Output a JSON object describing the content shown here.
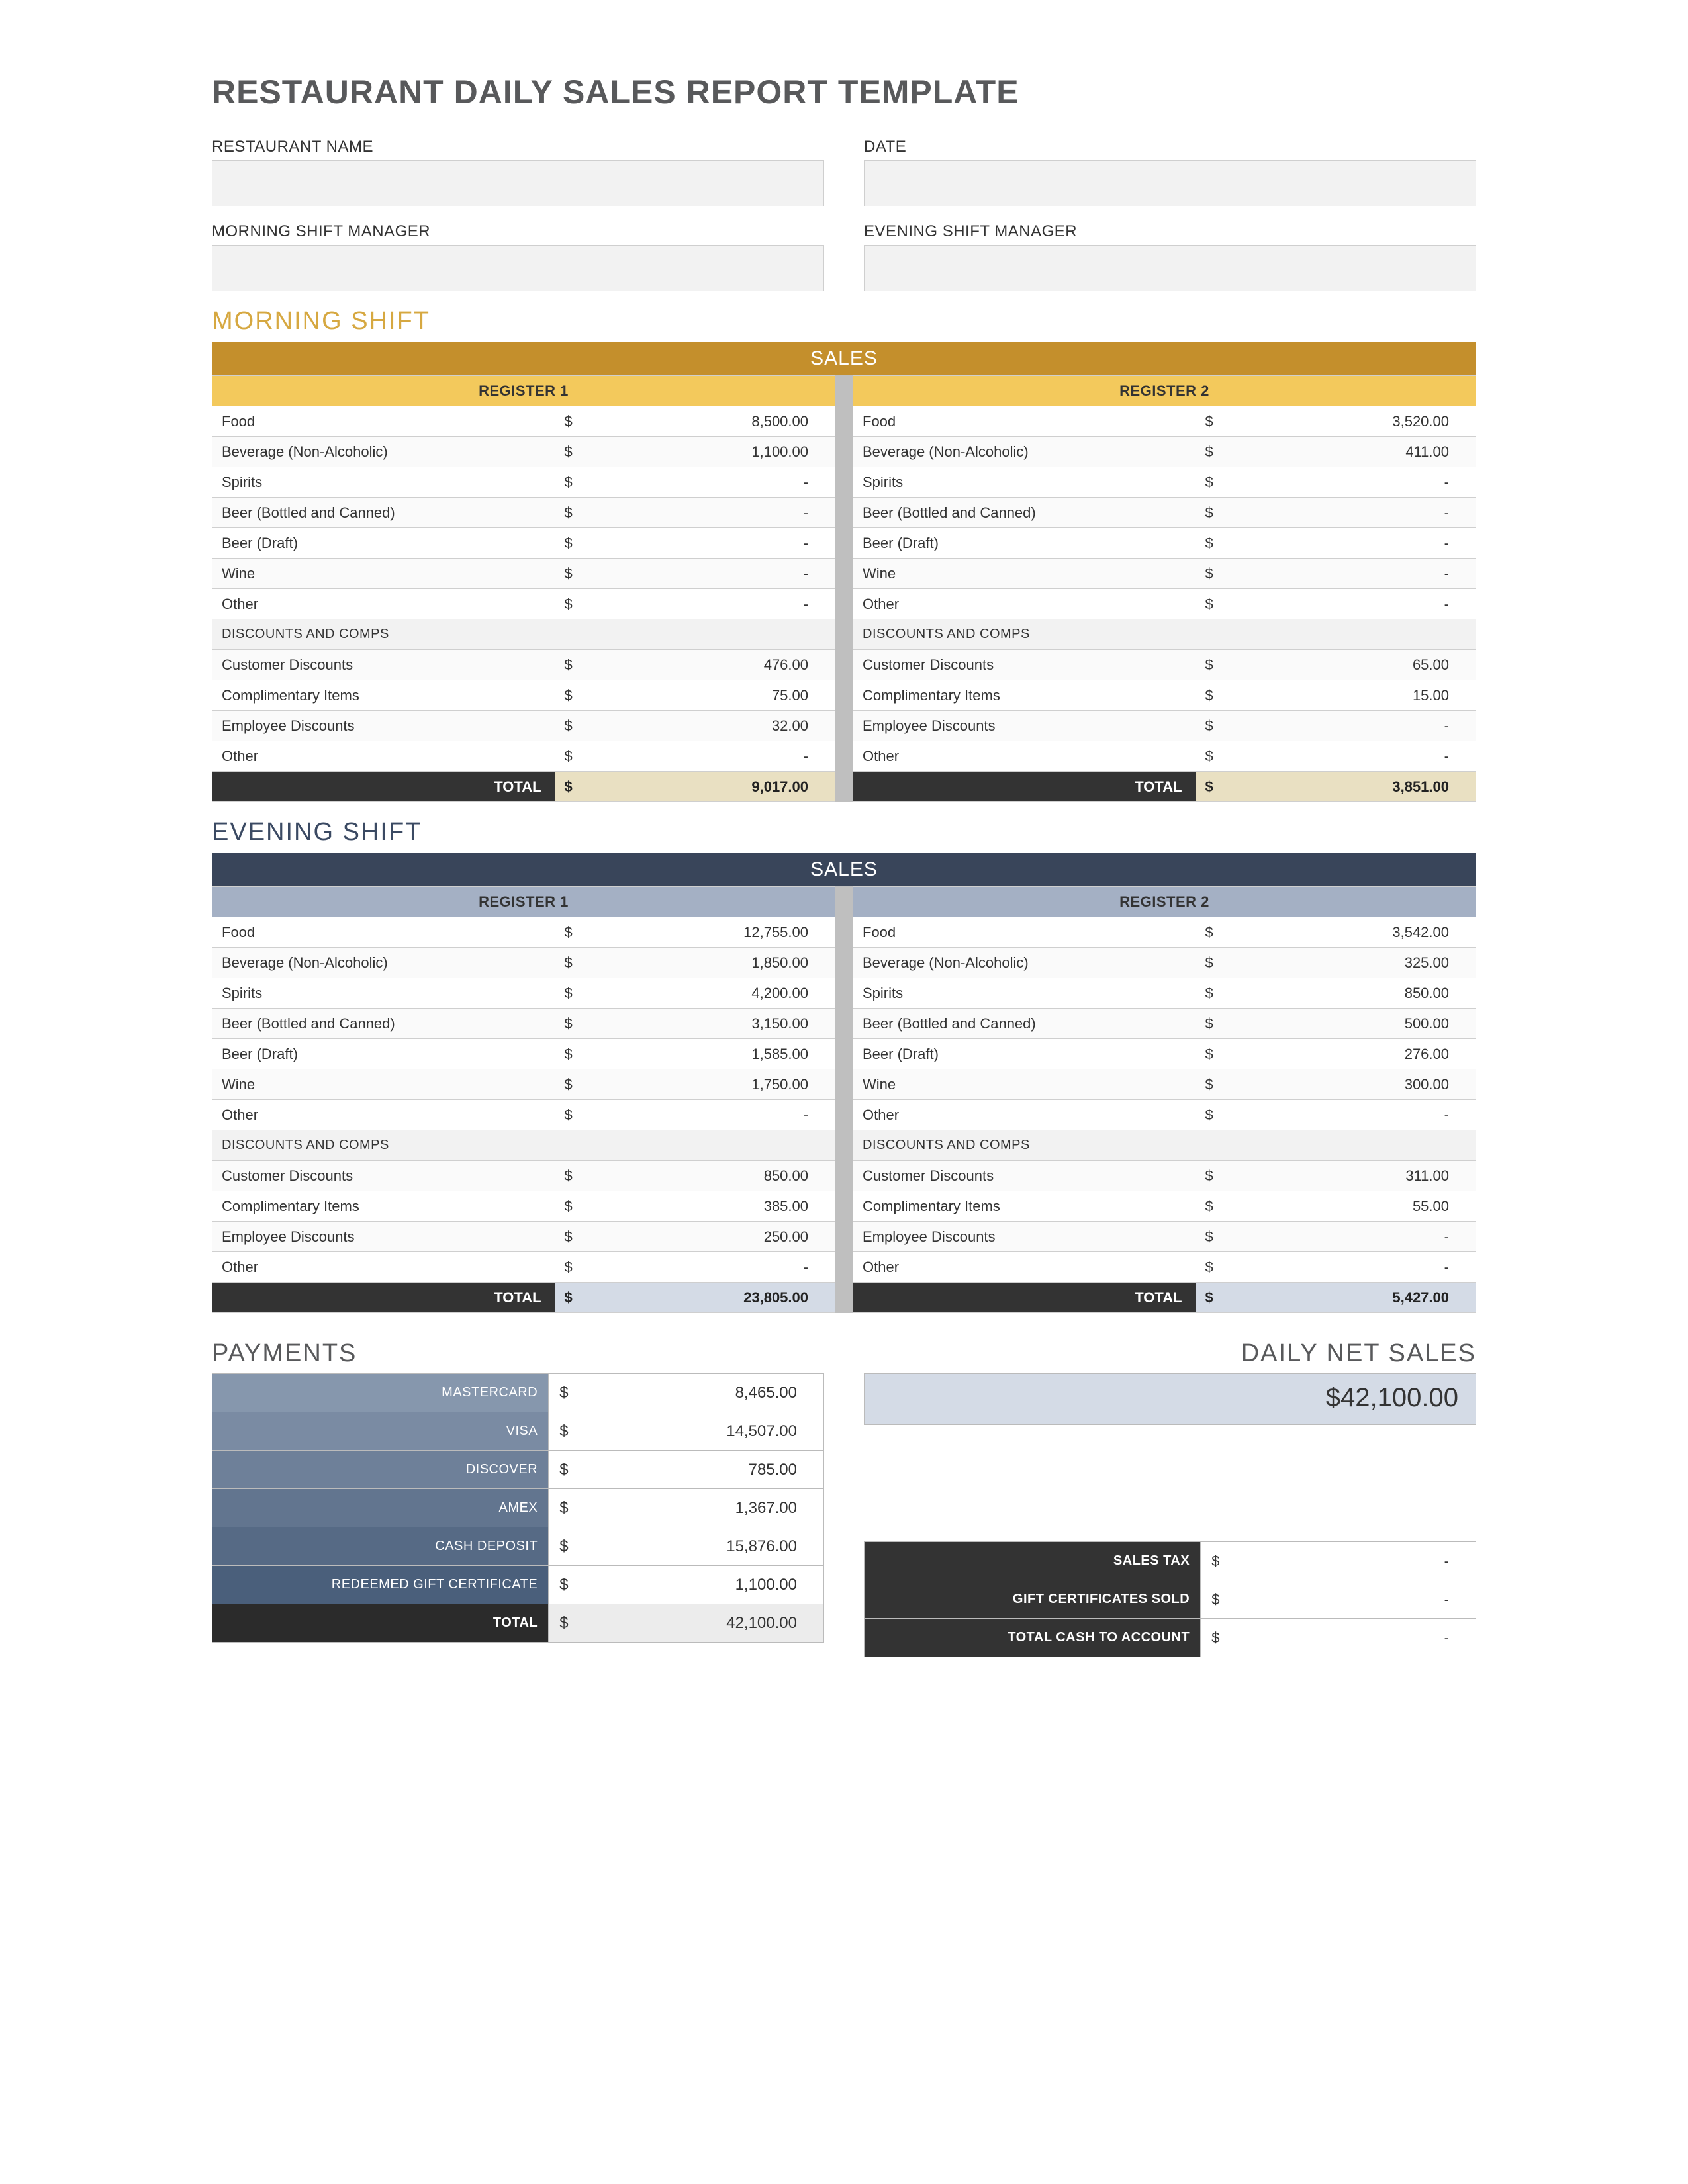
{
  "title": "RESTAURANT DAILY SALES REPORT TEMPLATE",
  "header_fields": {
    "restaurant_name_label": "RESTAURANT NAME",
    "date_label": "DATE",
    "morning_mgr_label": "MORNING SHIFT MANAGER",
    "evening_mgr_label": "EVENING SHIFT MANAGER",
    "restaurant_name_value": "",
    "date_value": "",
    "morning_mgr_value": "",
    "evening_mgr_value": ""
  },
  "labels": {
    "sales_banner": "SALES",
    "register1": "REGISTER 1",
    "register2": "REGISTER 2",
    "discounts_heading": "DISCOUNTS AND COMPS",
    "total": "TOTAL",
    "payments": "PAYMENTS",
    "daily_net_sales": "DAILY NET SALES",
    "dash": "-",
    "dollar": "$"
  },
  "sales_categories": [
    "Food",
    "Beverage (Non-Alcoholic)",
    "Spirits",
    "Beer (Bottled and Canned)",
    "Beer (Draft)",
    "Wine",
    "Other"
  ],
  "discount_categories": [
    "Customer Discounts",
    "Complimentary Items",
    "Employee Discounts",
    "Other"
  ],
  "morning_shift": {
    "title": "MORNING SHIFT",
    "title_color": "#d6a841",
    "banner_bg": "#c48f2c",
    "header_bg": "#f3c95c",
    "total_amount_bg": "#e9e0c2",
    "register1": {
      "sales": [
        "8,500.00",
        "1,100.00",
        "-",
        "-",
        "-",
        "-",
        "-"
      ],
      "discounts": [
        "476.00",
        "75.00",
        "32.00",
        "-"
      ],
      "total": "9,017.00"
    },
    "register2": {
      "sales": [
        "3,520.00",
        "411.00",
        "-",
        "-",
        "-",
        "-",
        "-"
      ],
      "discounts": [
        "65.00",
        "15.00",
        "-",
        "-"
      ],
      "total": "3,851.00"
    }
  },
  "evening_shift": {
    "title": "EVENING SHIFT",
    "title_color": "#3b4a63",
    "banner_bg": "#39455a",
    "header_bg": "#a4b0c4",
    "total_amount_bg": "#d4dbe6",
    "register1": {
      "sales": [
        "12,755.00",
        "1,850.00",
        "4,200.00",
        "3,150.00",
        "1,585.00",
        "1,750.00",
        "-"
      ],
      "discounts": [
        "850.00",
        "385.00",
        "250.00",
        "-"
      ],
      "total": "23,805.00"
    },
    "register2": {
      "sales": [
        "3,542.00",
        "325.00",
        "850.00",
        "500.00",
        "276.00",
        "300.00",
        "-"
      ],
      "discounts": [
        "311.00",
        "55.00",
        "-",
        "-"
      ],
      "total": "5,427.00"
    }
  },
  "payments": {
    "row_colors": [
      "#8697ad",
      "#7a8ba3",
      "#6e8099",
      "#62758f",
      "#566a85",
      "#4a5f7b"
    ],
    "rows": [
      {
        "label": "MASTERCARD",
        "amount": "8,465.00"
      },
      {
        "label": "VISA",
        "amount": "14,507.00"
      },
      {
        "label": "DISCOVER",
        "amount": "785.00"
      },
      {
        "label": "AMEX",
        "amount": "1,367.00"
      },
      {
        "label": "CASH DEPOSIT",
        "amount": "15,876.00"
      },
      {
        "label": "REDEEMED GIFT CERTIFICATE",
        "amount": "1,100.00"
      }
    ],
    "total_label": "TOTAL",
    "total_amount": "42,100.00"
  },
  "daily_net_sales": "$42,100.00",
  "summary_rows": [
    {
      "label": "SALES TAX",
      "amount": "-"
    },
    {
      "label": "GIFT CERTIFICATES SOLD",
      "amount": "-"
    },
    {
      "label": "TOTAL CASH TO ACCOUNT",
      "amount": "-"
    }
  ]
}
